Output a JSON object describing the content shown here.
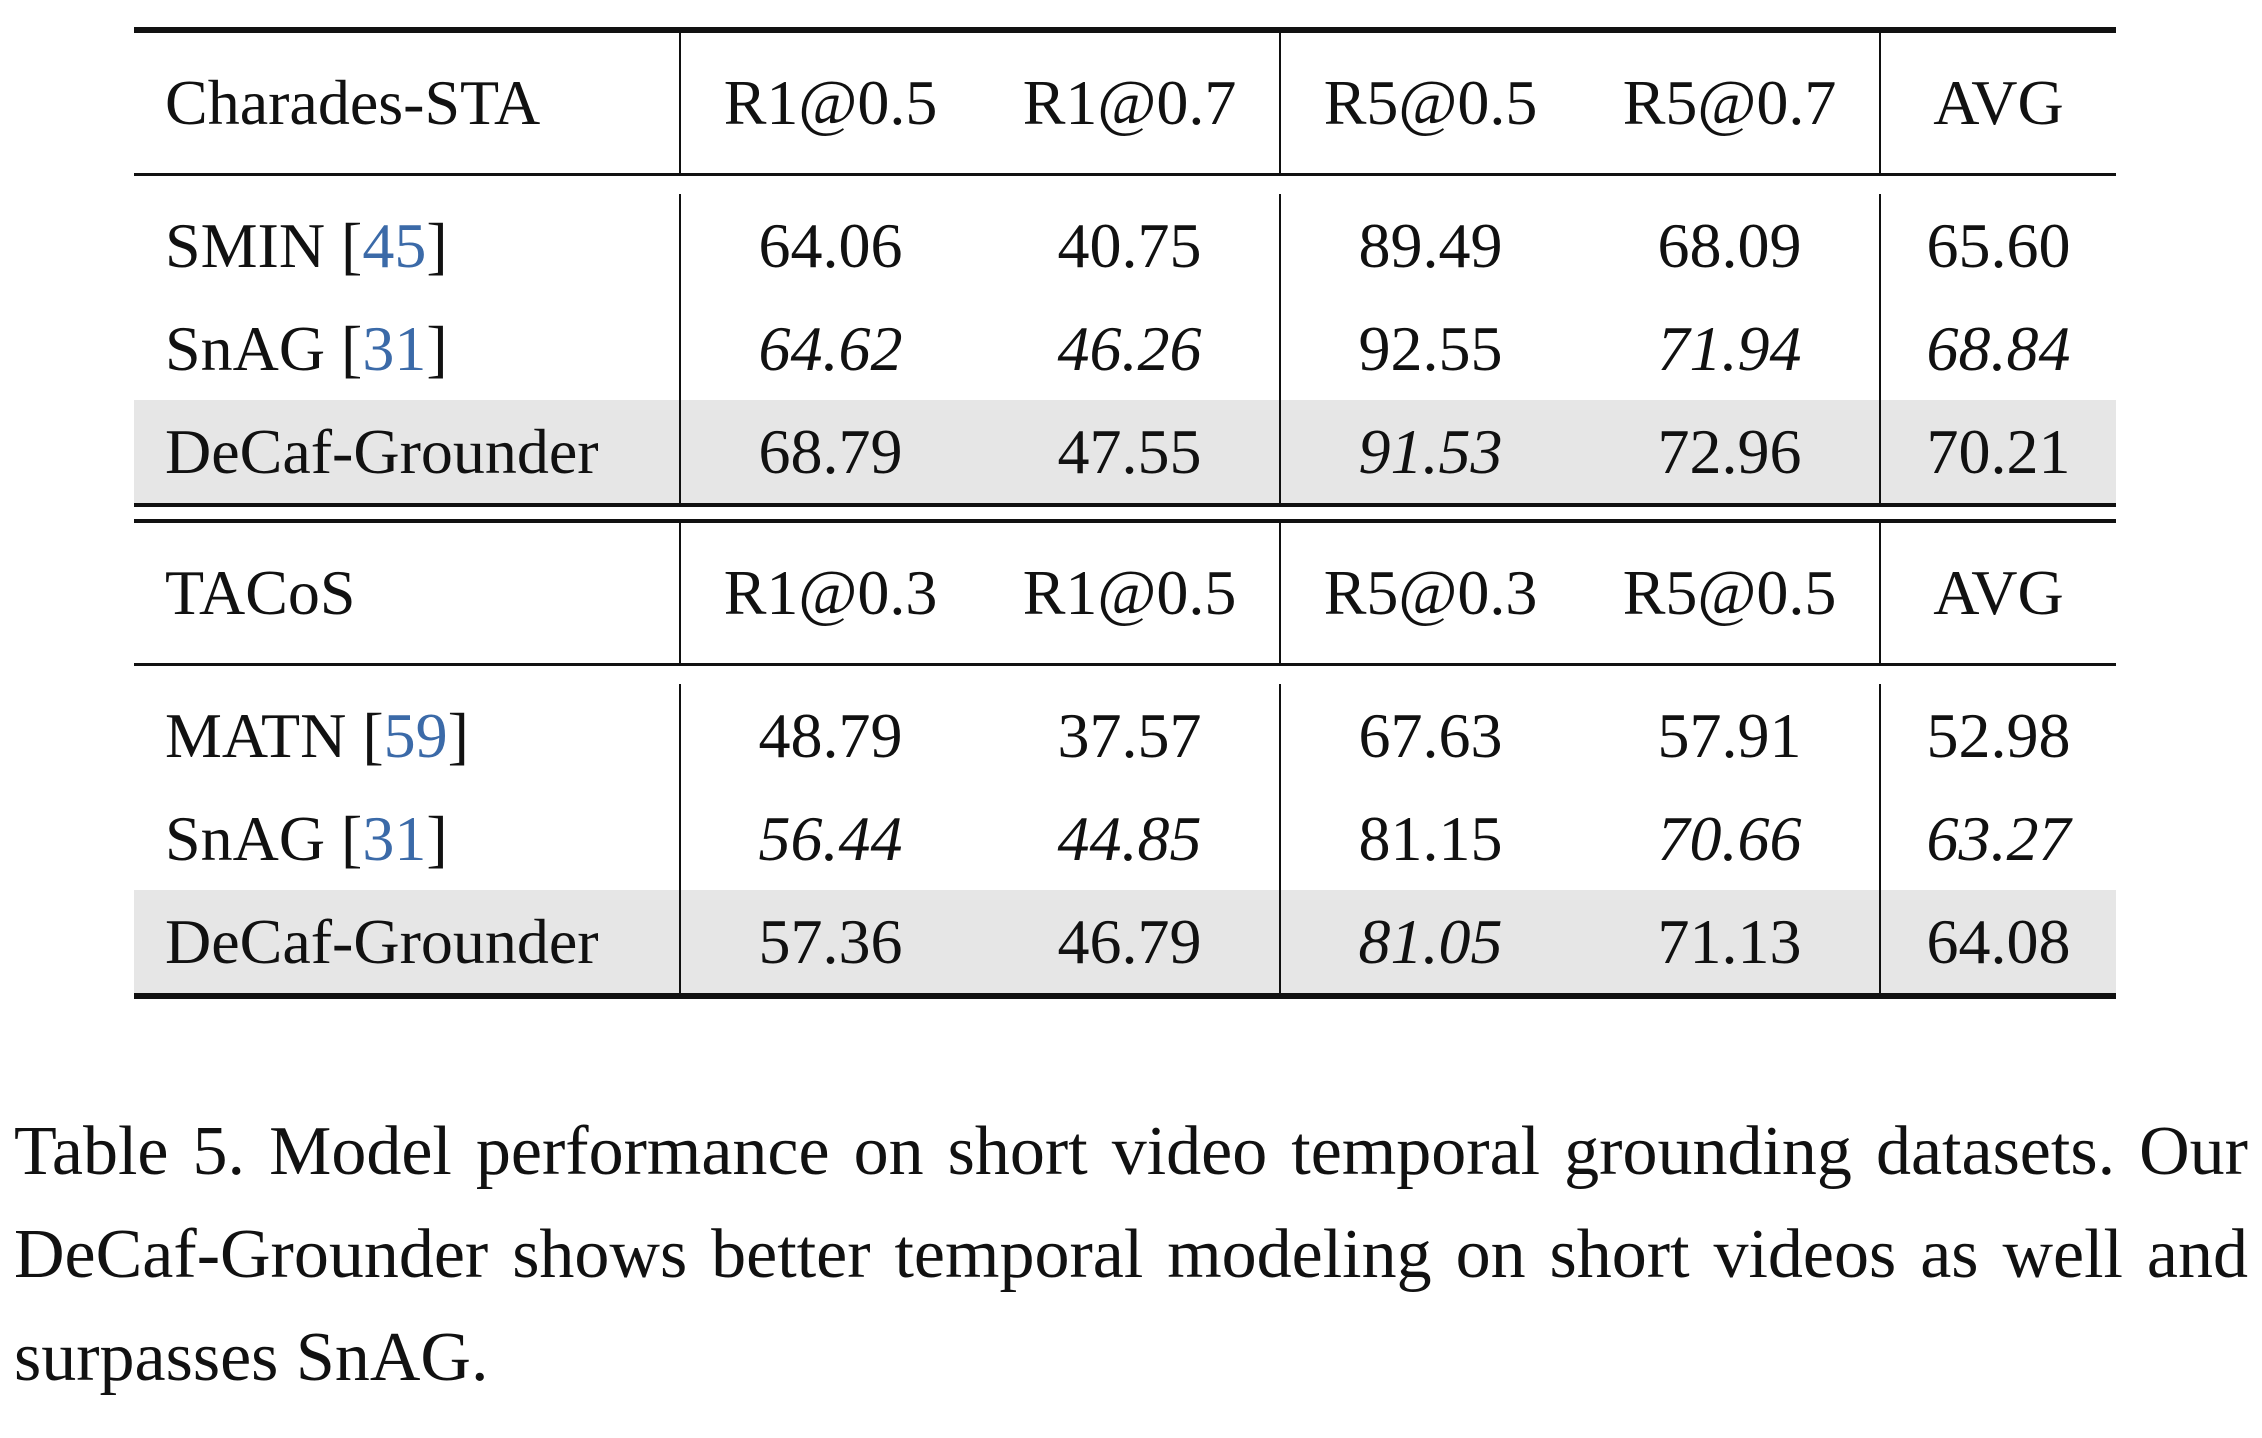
{
  "sections": [
    {
      "dataset": "Charades-STA",
      "columns": [
        "R1@0.5",
        "R1@0.7",
        "R5@0.5",
        "R5@0.7",
        "AVG"
      ],
      "rows": [
        {
          "method": "SMIN",
          "cite": "45",
          "values": [
            "64.06",
            "40.75",
            "89.49",
            "68.09",
            "65.60"
          ],
          "styles": [
            "normal",
            "normal",
            "normal",
            "normal",
            "normal"
          ],
          "highlight": false
        },
        {
          "method": "SnAG",
          "cite": "31",
          "values": [
            "64.62",
            "46.26",
            "92.55",
            "71.94",
            "68.84"
          ],
          "styles": [
            "italic",
            "italic",
            "bold",
            "italic",
            "italic"
          ],
          "highlight": false
        },
        {
          "method": "DeCaf-Grounder",
          "cite": "",
          "values": [
            "68.79",
            "47.55",
            "91.53",
            "72.96",
            "70.21"
          ],
          "styles": [
            "bold",
            "bold",
            "italic",
            "bold",
            "bold"
          ],
          "highlight": true
        }
      ]
    },
    {
      "dataset": "TACoS",
      "columns": [
        "R1@0.3",
        "R1@0.5",
        "R5@0.3",
        "R5@0.5",
        "AVG"
      ],
      "rows": [
        {
          "method": "MATN",
          "cite": "59",
          "values": [
            "48.79",
            "37.57",
            "67.63",
            "57.91",
            "52.98"
          ],
          "styles": [
            "normal",
            "normal",
            "normal",
            "normal",
            "normal"
          ],
          "highlight": false
        },
        {
          "method": "SnAG",
          "cite": "31",
          "values": [
            "56.44",
            "44.85",
            "81.15",
            "70.66",
            "63.27"
          ],
          "styles": [
            "italic",
            "italic",
            "bold",
            "italic",
            "italic"
          ],
          "highlight": false
        },
        {
          "method": "DeCaf-Grounder",
          "cite": "",
          "values": [
            "57.36",
            "46.79",
            "81.05",
            "71.13",
            "64.08"
          ],
          "styles": [
            "bold",
            "bold",
            "italic",
            "bold",
            "bold"
          ],
          "highlight": true
        }
      ]
    }
  ],
  "caption": "Table 5.  Model performance on short video temporal grounding datasets.  Our DeCaf-Grounder shows better temporal modeling on short videos as well and surpasses SnAG.",
  "colors": {
    "citation": "#3b6aa8",
    "highlight_row": "#e6e6e6",
    "rule": "#111111"
  }
}
